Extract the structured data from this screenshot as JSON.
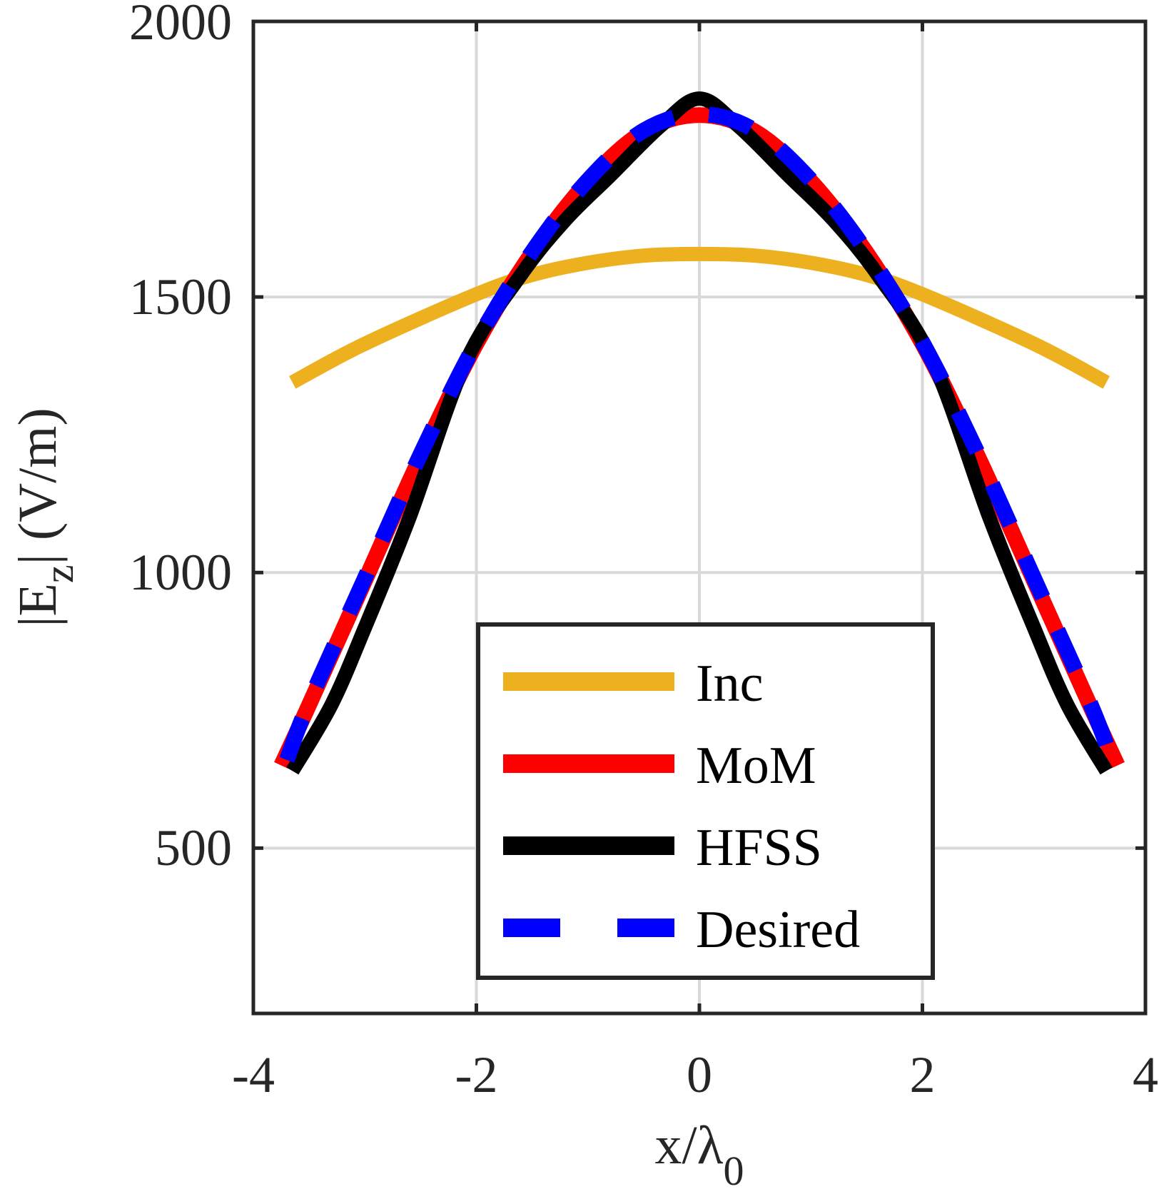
{
  "chart_data": {
    "type": "line",
    "title": "",
    "xlabel": "x/λ0",
    "xlabel_parts": {
      "main": "x/λ",
      "sub": "0"
    },
    "ylabel": "|Ez| (V/m)",
    "ylabel_parts": {
      "pre": "|E",
      "sub": "z",
      "post": "| (V/m)"
    },
    "xlim": [
      -4,
      4
    ],
    "ylim": [
      200,
      2000
    ],
    "xticks": [
      -4,
      -2,
      0,
      2,
      4
    ],
    "xtick_labels": [
      "-4",
      "-2",
      "0",
      "2",
      "4"
    ],
    "yticks": [
      500,
      1000,
      1500,
      2000
    ],
    "ytick_labels": [
      "500",
      "1000",
      "1500",
      "2000"
    ],
    "grid": true,
    "legend_position": "bottom-center",
    "series": [
      {
        "name": "Inc",
        "color": "#EDB120",
        "style": "solid",
        "x": [
          -3.65,
          -3,
          -2,
          -1.5,
          -1,
          -0.5,
          0,
          0.5,
          1,
          1.5,
          2,
          3,
          3.65
        ],
        "y": [
          1345,
          1415,
          1505,
          1540,
          1562,
          1575,
          1578,
          1575,
          1562,
          1540,
          1505,
          1415,
          1345
        ]
      },
      {
        "name": "MoM",
        "color": "#FF0000",
        "style": "solid",
        "x": [
          -3.75,
          -3.5,
          -3,
          -2.5,
          -2,
          -1.5,
          -1,
          -0.5,
          0,
          0.5,
          1,
          1.5,
          2,
          2.5,
          3,
          3.5,
          3.75
        ],
        "y": [
          650,
          760,
          985,
          1210,
          1415,
          1580,
          1710,
          1800,
          1830,
          1800,
          1710,
          1580,
          1415,
          1210,
          985,
          760,
          650
        ]
      },
      {
        "name": "HFSS",
        "color": "#000000",
        "style": "solid",
        "x": [
          -3.65,
          -3.3,
          -3,
          -2.6,
          -2.1,
          -1.6,
          -1.2,
          -0.8,
          -0.35,
          0,
          0.35,
          0.8,
          1.2,
          1.6,
          2.1,
          2.6,
          3,
          3.3,
          3.65
        ],
        "y": [
          640,
          760,
          900,
          1100,
          1380,
          1540,
          1640,
          1720,
          1810,
          1860,
          1810,
          1720,
          1640,
          1540,
          1380,
          1100,
          900,
          760,
          640
        ]
      },
      {
        "name": "Desired",
        "color": "#0000FF",
        "style": "dashed",
        "x": [
          -3.7,
          -3.5,
          -3,
          -2.5,
          -2,
          -1.5,
          -1,
          -0.5,
          0,
          0.5,
          1,
          1.5,
          2,
          2.5,
          3,
          3.5,
          3.7
        ],
        "y": [
          660,
          765,
          990,
          1215,
          1418,
          1582,
          1712,
          1802,
          1832,
          1802,
          1712,
          1582,
          1418,
          1215,
          990,
          765,
          660
        ]
      }
    ]
  }
}
